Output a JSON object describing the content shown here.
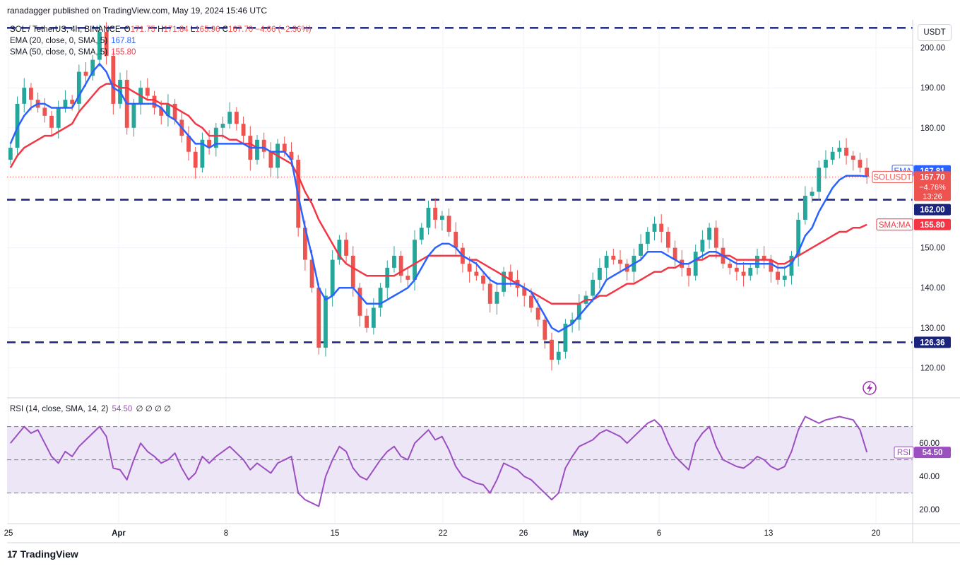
{
  "header": {
    "publisher_line": "ranadagger published on TradingView.com, May 19, 2024 15:46 UTC"
  },
  "legend": {
    "main": {
      "label": "SOL / TetherUS, 4h, BINANCE",
      "o_label": "O",
      "o": "171.75",
      "h_label": "H",
      "h": "171.84",
      "l_label": "L",
      "l": "165.96",
      "c_label": "C",
      "c": "167.70",
      "change": "−4.06 (−2.36%)"
    },
    "ema": {
      "label": "EMA (20, close, 0, SMA, 5)",
      "value": "167.81"
    },
    "sma": {
      "label": "SMA (50, close, 0, SMA, 5)",
      "value": "155.80"
    },
    "rsi": {
      "label": "RSI (14, close, SMA, 14, 2)",
      "value": "54.50",
      "extras": "∅ ∅ ∅ ∅"
    }
  },
  "price_axis": {
    "currency": "USDT",
    "ticks": [
      "200.00",
      "190.00",
      "180.00",
      "150.00",
      "140.00",
      "130.00",
      "120.00"
    ]
  },
  "rsi_axis": {
    "ticks": [
      "60.00",
      "40.00",
      "20.00"
    ]
  },
  "x_axis": {
    "labels": [
      "25",
      "Apr",
      "8",
      "15",
      "22",
      "26",
      "May",
      "6",
      "13",
      "20"
    ]
  },
  "price_labels": {
    "ema": {
      "tag": "EMA",
      "value": "167.81"
    },
    "symbol": {
      "tag": "SOLUSDT",
      "value": "167.70",
      "change": "−4.76%",
      "countdown": "13:26"
    },
    "level_162": "162.00",
    "sma": {
      "tag": "SMA:MA",
      "value": "155.80"
    },
    "level_126": "126.36",
    "rsi": {
      "tag": "RSI",
      "value": "54.50"
    }
  },
  "brand": {
    "logo": "17",
    "name": "TradingView"
  },
  "colors": {
    "up": "#26a69a",
    "down": "#ef5350",
    "ema": "#2962ff",
    "sma": "#f23645",
    "rsi": "#9c4fc0",
    "hline": "#1a237e",
    "rsi_band": "#ece6f7"
  },
  "chart_data": [
    {
      "type": "candlestick",
      "title": "SOL / TetherUS, 4h, BINANCE",
      "ylim": [
        113,
        207
      ],
      "series": [
        {
          "name": "SOLUSDT close (approx.)",
          "values": [
            175,
            186,
            190,
            187,
            185,
            183,
            180,
            185,
            187,
            186,
            194,
            193,
            197,
            204,
            198,
            186,
            192,
            180,
            186,
            190,
            188,
            185,
            183,
            186,
            182,
            178,
            174,
            170,
            177,
            175,
            180,
            181,
            184,
            181,
            178,
            172,
            177,
            174,
            170,
            176,
            174,
            172,
            155,
            147,
            140,
            125,
            138,
            147,
            152,
            148,
            140,
            133,
            130,
            135,
            140,
            145,
            148,
            143,
            142,
            152,
            155,
            160,
            157,
            158,
            154,
            150,
            146,
            144,
            143,
            141,
            136,
            139,
            144,
            142,
            140,
            138,
            135,
            132,
            127,
            122,
            124,
            131,
            132,
            136,
            138,
            142,
            145,
            148,
            147,
            146,
            144,
            148,
            151,
            154,
            156,
            154,
            150,
            147,
            145,
            143,
            149,
            152,
            155,
            150,
            146,
            145,
            144,
            143,
            145,
            148,
            147,
            144,
            142,
            143,
            148,
            157,
            163,
            164,
            170,
            172,
            174,
            175,
            173,
            172,
            170,
            167.7
          ]
        },
        {
          "name": "EMA 20",
          "values": [
            176,
            180,
            183,
            185,
            186,
            186,
            185,
            185,
            185,
            185,
            188,
            191,
            194,
            196,
            194,
            190,
            189,
            186,
            186,
            186,
            186,
            186,
            185,
            183,
            182,
            180,
            178,
            176,
            176,
            175,
            176,
            176,
            176,
            176,
            176,
            175,
            175,
            175,
            174,
            174,
            174,
            172,
            163,
            155,
            148,
            140,
            137,
            138,
            140,
            140,
            140,
            138,
            136,
            136,
            136,
            137,
            138,
            139,
            140,
            142,
            145,
            148,
            150,
            151,
            151,
            150,
            148,
            147,
            146,
            144,
            142,
            141,
            141,
            141,
            141,
            140,
            139,
            136,
            133,
            130,
            129,
            130,
            131,
            133,
            135,
            137,
            139,
            142,
            143,
            144,
            145,
            146,
            147,
            149,
            149,
            149,
            148,
            147,
            146,
            146,
            147,
            148,
            149,
            149,
            148,
            147,
            146,
            146,
            146,
            146,
            146,
            146,
            145,
            145,
            146,
            149,
            153,
            155,
            159,
            162,
            165,
            167,
            168,
            168,
            168,
            167.81
          ]
        },
        {
          "name": "SMA 50",
          "values": [
            170,
            173,
            175,
            176,
            177,
            178,
            178,
            179,
            180,
            181,
            184,
            186,
            188,
            190,
            191,
            191,
            190,
            190,
            189,
            188,
            187,
            187,
            186,
            186,
            185,
            184,
            183,
            181,
            180,
            178,
            178,
            178,
            177,
            177,
            176,
            176,
            175,
            175,
            174,
            173,
            172,
            171,
            168,
            164,
            161,
            157,
            154,
            151,
            148,
            146,
            145,
            144,
            143,
            143,
            143,
            143,
            143,
            144,
            145,
            146,
            147,
            148,
            148,
            148,
            148,
            148,
            148,
            147,
            147,
            146,
            145,
            144,
            143,
            142,
            141,
            140,
            139,
            138,
            137,
            136,
            136,
            136,
            136,
            136,
            137,
            137,
            138,
            138,
            139,
            140,
            141,
            141,
            142,
            143,
            144,
            144,
            145,
            145,
            146,
            146,
            147,
            147,
            148,
            148,
            148,
            148,
            147,
            147,
            147,
            147,
            147,
            147,
            146,
            146,
            147,
            148,
            149,
            150,
            151,
            152,
            153,
            154,
            154,
            155,
            155,
            155.8
          ]
        }
      ],
      "levels": [
        {
          "name": "resistance",
          "value": 205
        },
        {
          "name": "support",
          "value": 162.0
        },
        {
          "name": "support",
          "value": 126.36
        }
      ]
    },
    {
      "type": "line",
      "title": "RSI (14, close, SMA, 14, 2)",
      "ylim": [
        12,
        86
      ],
      "series": [
        {
          "name": "RSI",
          "values": [
            60,
            65,
            70,
            66,
            68,
            60,
            52,
            48,
            55,
            52,
            58,
            62,
            66,
            70,
            64,
            45,
            44,
            38,
            50,
            60,
            55,
            52,
            48,
            50,
            54,
            45,
            38,
            42,
            52,
            48,
            52,
            55,
            58,
            54,
            50,
            44,
            48,
            45,
            42,
            48,
            50,
            52,
            30,
            26,
            24,
            22,
            40,
            50,
            58,
            55,
            45,
            40,
            38,
            44,
            50,
            55,
            58,
            52,
            50,
            60,
            64,
            68,
            62,
            64,
            56,
            46,
            40,
            38,
            36,
            35,
            30,
            38,
            48,
            46,
            44,
            40,
            38,
            34,
            30,
            26,
            30,
            45,
            52,
            58,
            60,
            62,
            66,
            68,
            66,
            64,
            60,
            64,
            68,
            72,
            74,
            70,
            60,
            52,
            48,
            44,
            60,
            66,
            70,
            58,
            50,
            48,
            46,
            45,
            48,
            52,
            50,
            46,
            44,
            46,
            55,
            68,
            76,
            74,
            72,
            74,
            75,
            76,
            75,
            74,
            68,
            54.5
          ]
        }
      ],
      "levels": [
        70,
        50,
        30
      ]
    }
  ]
}
